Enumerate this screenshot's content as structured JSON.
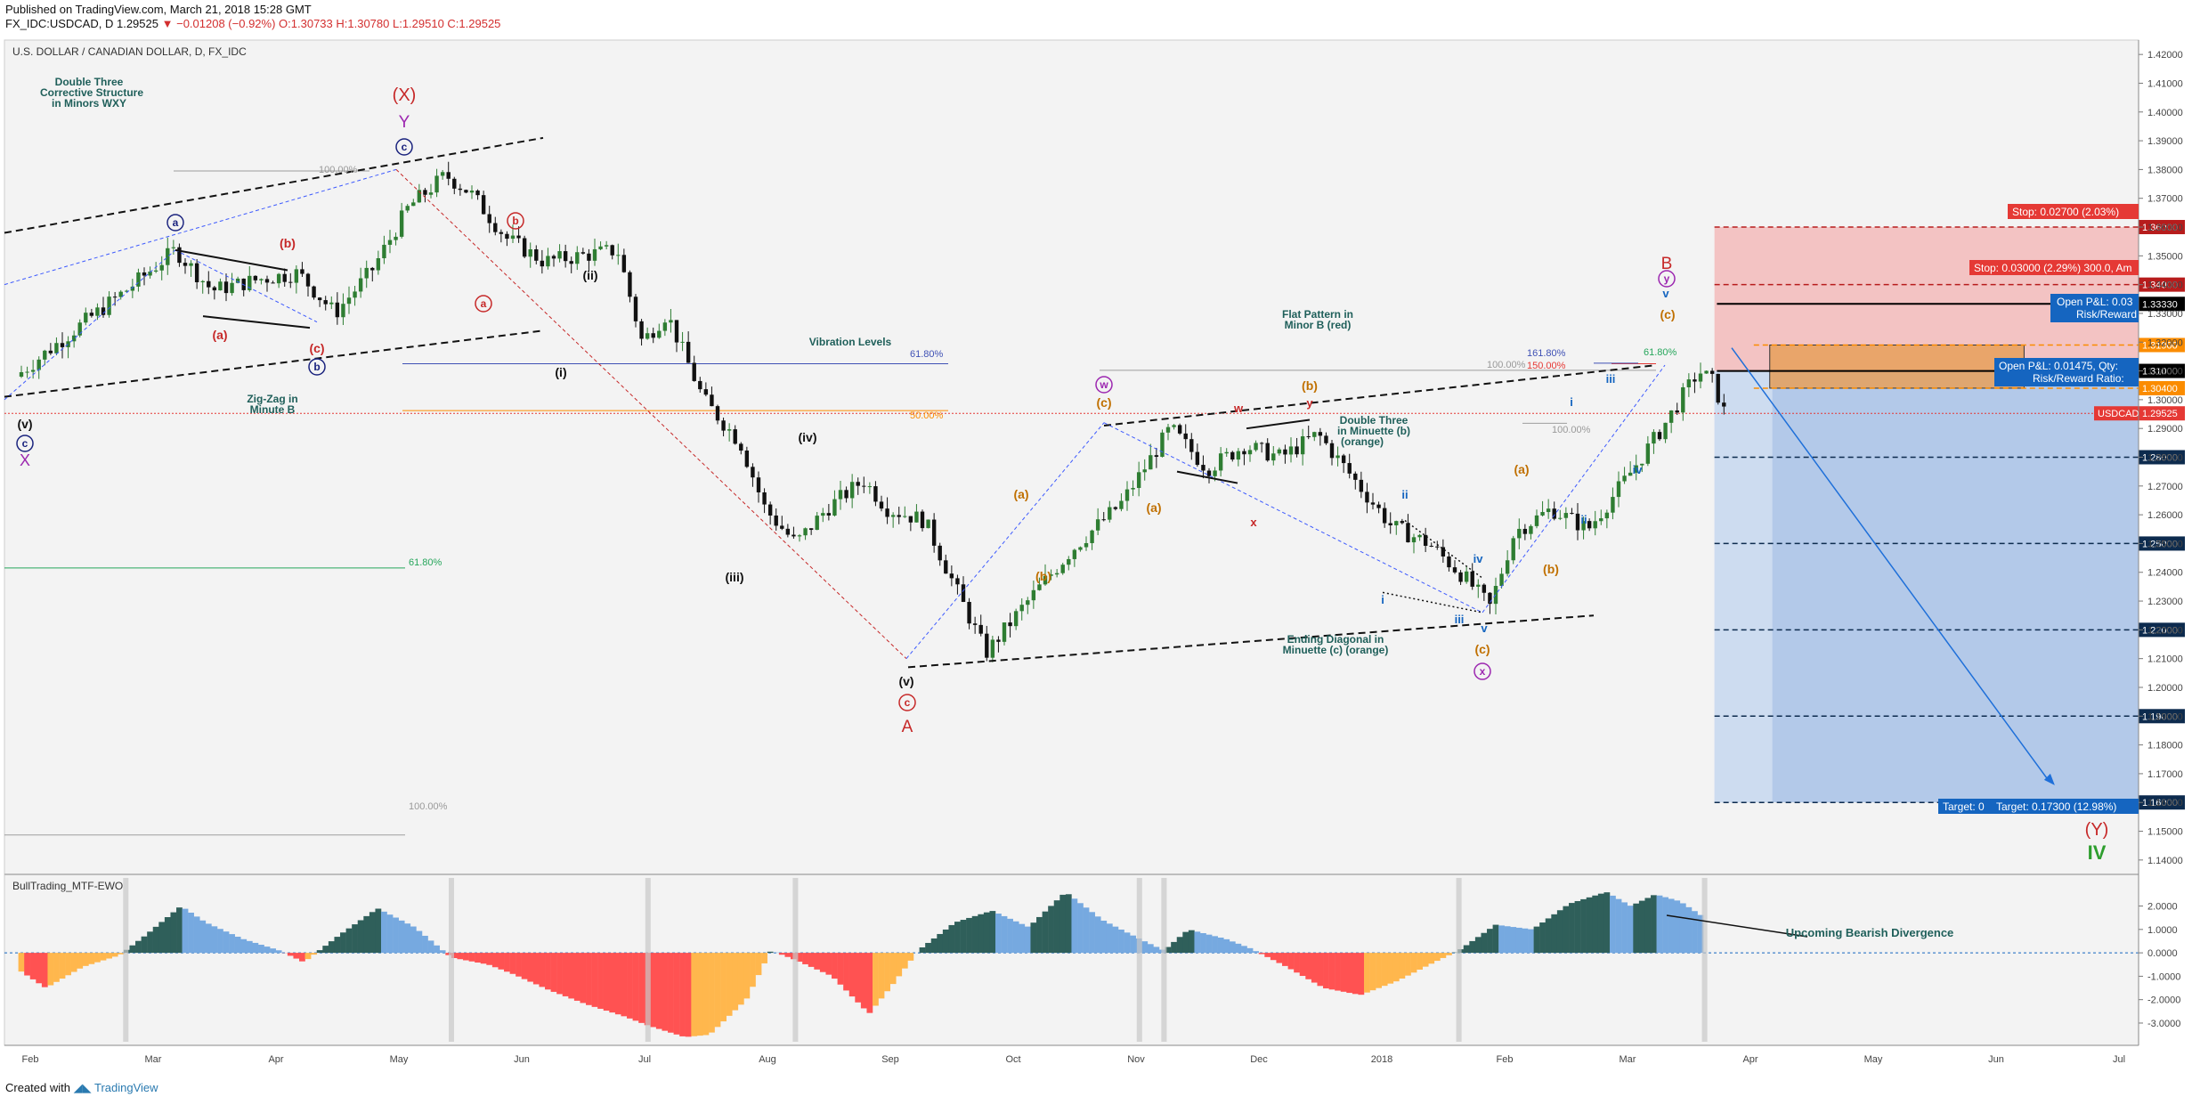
{
  "header": {
    "published": "Published on TradingView.com, March 21, 2018 15:28 GMT",
    "symbol_line": "FX_IDC:USDCAD, D",
    "last": "1.29525",
    "change": "−0.01208 (−0.92%)",
    "ohlc": "O:1.30733 H:1.30780 L:1.29510 C:1.29525"
  },
  "footer": {
    "created": "Created with",
    "brand": "TradingView"
  },
  "colors": {
    "bull": "#2e7d32",
    "bear": "#111111",
    "stop": "#e53935",
    "target": "#1565c0",
    "ewo_dark": "#2f5f5a",
    "ewo_light": "#76a9e0",
    "ewo_red": "#ff5252",
    "ewo_orange": "#ffb74d"
  },
  "chart_data": {
    "type": "candlestick",
    "title": "U.S. DOLLAR / CANADIAN DOLLAR, D, FX_IDC",
    "ylim": [
      1.135,
      1.425
    ],
    "y_ticks": [
      "1.42000",
      "1.41000",
      "1.40000",
      "1.39000",
      "1.38000",
      "1.37000",
      "1.36000",
      "1.35000",
      "1.34000",
      "1.33000",
      "1.32000",
      "1.31000",
      "1.30000",
      "1.29000",
      "1.28000",
      "1.27000",
      "1.26000",
      "1.25000",
      "1.24000",
      "1.23000",
      "1.22000",
      "1.21000",
      "1.20000",
      "1.19000",
      "1.18000",
      "1.17000",
      "1.16000",
      "1.15000",
      "1.14000"
    ],
    "x_labels": [
      "Feb",
      "Mar",
      "Apr",
      "May",
      "Jun",
      "Jul",
      "Aug",
      "Sep",
      "Oct",
      "Nov",
      "Dec",
      "2018",
      "Feb",
      "Mar",
      "Apr",
      "May",
      "Jun",
      "Jul"
    ],
    "x_label_months": [
      0,
      1,
      2,
      3,
      4,
      5,
      6,
      7,
      8,
      9,
      10,
      11,
      12,
      13,
      14,
      15,
      16,
      17
    ],
    "last_price_label": "USDCAD",
    "last_price": "1.29525",
    "price_path": [
      [
        0,
        1.308
      ],
      [
        0.5,
        1.325
      ],
      [
        0.9,
        1.338
      ],
      [
        1.3,
        1.352
      ],
      [
        1.6,
        1.338
      ],
      [
        2.0,
        1.342
      ],
      [
        2.3,
        1.344
      ],
      [
        2.6,
        1.33
      ],
      [
        2.9,
        1.345
      ],
      [
        3.2,
        1.367
      ],
      [
        3.5,
        1.378
      ],
      [
        3.7,
        1.372
      ],
      [
        4.0,
        1.356
      ],
      [
        4.3,
        1.348
      ],
      [
        4.6,
        1.35
      ],
      [
        4.9,
        1.352
      ],
      [
        5.1,
        1.32
      ],
      [
        5.3,
        1.33
      ],
      [
        5.6,
        1.3
      ],
      [
        5.9,
        1.285
      ],
      [
        6.1,
        1.262
      ],
      [
        6.35,
        1.25
      ],
      [
        6.6,
        1.262
      ],
      [
        6.9,
        1.272
      ],
      [
        7.1,
        1.262
      ],
      [
        7.4,
        1.258
      ],
      [
        7.7,
        1.23
      ],
      [
        7.9,
        1.212
      ],
      [
        8.2,
        1.228
      ],
      [
        8.6,
        1.248
      ],
      [
        9.0,
        1.264
      ],
      [
        9.4,
        1.29
      ],
      [
        9.7,
        1.276
      ],
      [
        10.0,
        1.284
      ],
      [
        10.3,
        1.28
      ],
      [
        10.6,
        1.288
      ],
      [
        10.9,
        1.272
      ],
      [
        11.2,
        1.256
      ],
      [
        11.5,
        1.25
      ],
      [
        11.8,
        1.238
      ],
      [
        12.0,
        1.228
      ],
      [
        12.2,
        1.254
      ],
      [
        12.5,
        1.262
      ],
      [
        12.8,
        1.255
      ],
      [
        13.1,
        1.272
      ],
      [
        13.4,
        1.29
      ],
      [
        13.7,
        1.31
      ],
      [
        13.82,
        1.306
      ],
      [
        13.9,
        1.296
      ]
    ],
    "levels": [
      {
        "price": 1.36,
        "label": "1.36000",
        "type": "stop"
      },
      {
        "price": 1.34,
        "label": "1.34000",
        "type": "stop"
      },
      {
        "price": 1.3333,
        "label": "1.33330",
        "type": "black"
      },
      {
        "price": 1.319,
        "label": "1.31900",
        "type": "entry"
      },
      {
        "price": 1.31,
        "label": "1.31000",
        "type": "black"
      },
      {
        "price": 1.304,
        "label": "1.30400",
        "type": "entry"
      },
      {
        "price": 1.28,
        "label": "1.28000",
        "type": "target"
      },
      {
        "price": 1.25,
        "label": "1.25000",
        "type": "target"
      },
      {
        "price": 1.22,
        "label": "1.22000",
        "type": "target"
      },
      {
        "price": 1.19,
        "label": "1.19000",
        "type": "target"
      },
      {
        "price": 1.16,
        "label": "1.16000",
        "type": "target"
      }
    ],
    "positions": {
      "stop1": "Stop: 0.02700 (2.03%)",
      "stop2": "Stop: 0.03000 (2.29%) 300.0, Am",
      "pnl1a": "Open P&L: 0.03",
      "pnl1b": "Risk/Reward",
      "pnl2a": "Open P&L: 0.01475, Qty:",
      "pnl2b": "Risk/Reward Ratio:",
      "target": "Target: 0.17300 (12.98%)",
      "target_prefix": "Target: 0"
    },
    "fib_labels": {
      "l100a": "100.00%",
      "l618a": "61.80%",
      "l500": "50.00%",
      "l618b": "61.80%",
      "l100b": "100.00%",
      "l100c": "100.00%",
      "l1618": "161.80%",
      "l150": "150.00%",
      "l618c": "61.80%",
      "l100d": "100.00%"
    },
    "annotations": {
      "double_three": [
        "Double Three",
        "Corrective Structure",
        "in Minors WXY"
      ],
      "zigzag": [
        "Zig-Zag in",
        "Minute B"
      ],
      "vibration": "Vibration Levels",
      "flat": [
        "Flat Pattern in",
        "Minor B (red)"
      ],
      "dt_minuette": [
        "Double Three",
        "in Minuette (b)",
        "(orange)"
      ],
      "ending": [
        "Ending Diagonal in",
        "Minuette (c) (orange)"
      ],
      "divergence": "Upcoming Bearish Divergence"
    },
    "waves": {
      "X_big": "(X)",
      "Y": "Y",
      "c_circ": "c",
      "a_circ": "a",
      "b_circ": "b",
      "v_par": "(v)",
      "c_circ2": "c",
      "X_small": "X",
      "b_red": "(b)",
      "a_red": "(a)",
      "c_red": "(c)",
      "b_red_c": "b",
      "a_red_c": "a",
      "ii": "(ii)",
      "i": "(i)",
      "iii": "(iii)",
      "iv": "(iv)",
      "v2": "(v)",
      "c_red_c": "c",
      "A": "A",
      "w_circ": "w",
      "c_or": "(c)",
      "a_or": "(a)",
      "b_or": "(b)",
      "a_or2": "(a)",
      "w_red": "w",
      "x_red": "x",
      "y_red": "y",
      "b_or2": "(b)",
      "ii_b": "ii",
      "iv_b": "iv",
      "i_b": "i",
      "iii_b": "iii",
      "v_b": "v",
      "c_or2": "(c)",
      "x_circ": "x",
      "a_or3": "(a)",
      "b_or3": "(b)",
      "i_c": "i",
      "ii_c": "ii",
      "iii_c": "iii",
      "iv_c": "iv",
      "v_c": "v",
      "c_or3": "(c)",
      "y_circ": "y",
      "B_red": "B",
      "Y_big": "(Y)",
      "IV": "IV"
    },
    "ewo": {
      "title": "BullTrading_MTF-EWO",
      "y_ticks": [
        "2.0000",
        "1.0000",
        "0.0000",
        "-1.0000",
        "-2.0000",
        "-3.0000"
      ],
      "ylim": [
        -3.8,
        3.2
      ]
    }
  }
}
